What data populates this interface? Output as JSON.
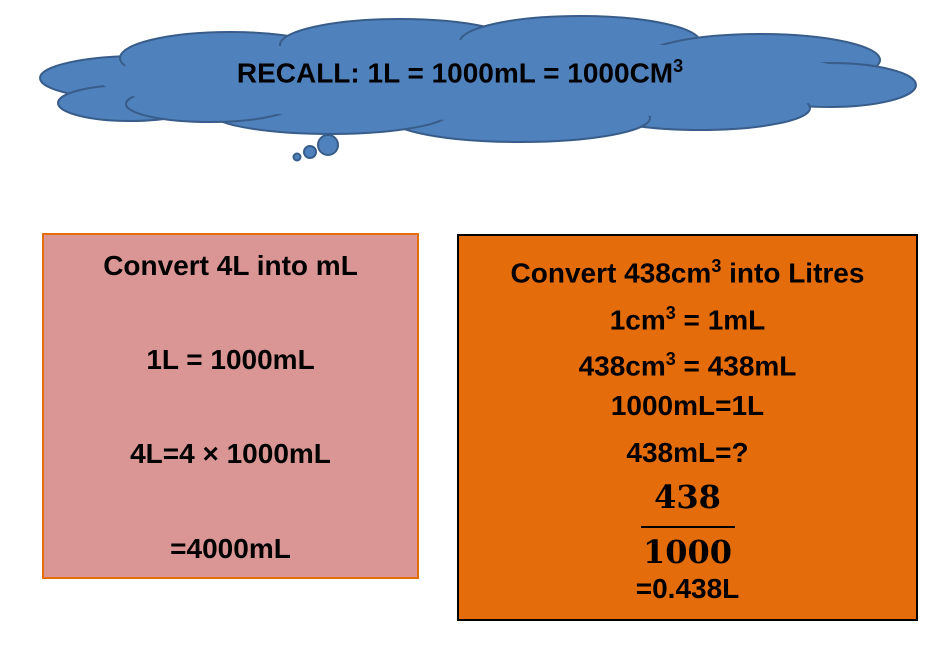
{
  "recall": {
    "prefix": "RECALL: 1L = 1000mL = 1000CM",
    "superscript": "3"
  },
  "left_box": {
    "title": "Convert 4L into mL",
    "line1": "1L = 1000mL",
    "line2": "4L=4 × 1000mL",
    "line3": "=4000mL"
  },
  "right_box": {
    "title_prefix": "Convert 438cm",
    "title_sup": "3",
    "title_suffix": " into Litres",
    "line1_prefix": "1cm",
    "line1_sup": "3",
    "line1_suffix": " = 1mL",
    "line2_prefix": "438cm",
    "line2_sup": "3",
    "line2_suffix": " = 438mL",
    "line3": "1000mL=1L",
    "line4": "438mL=?",
    "fraction_numerator": "438",
    "fraction_denominator": "1000",
    "result": "=0.438L"
  },
  "colors": {
    "cloud_fill": "#4f81bd",
    "cloud_outline": "#385d8a",
    "left_box_fill": "#da9694",
    "left_box_border": "#e46c0a",
    "right_box_fill": "#e46c0a",
    "right_box_border": "#000000"
  }
}
